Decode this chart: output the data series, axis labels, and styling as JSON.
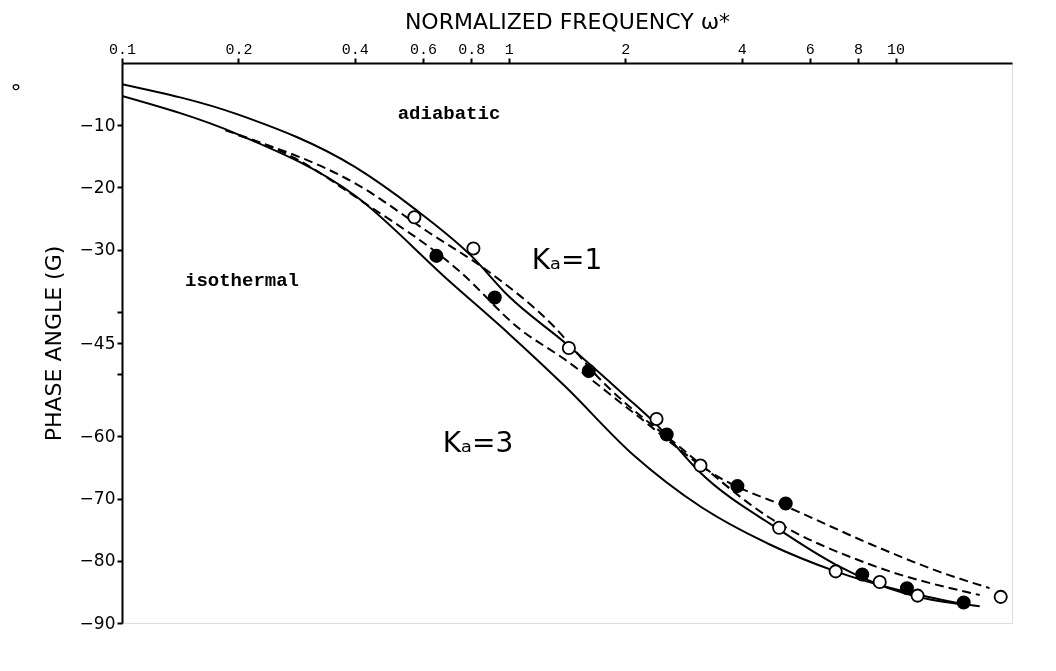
{
  "chart_data": {
    "type": "line",
    "xlabel": "NORMALIZED FREQUENCY ω*",
    "ylabel": "PHASE ANGLE (G)",
    "xlim": [
      0.1,
      20
    ],
    "ylim": [
      -90,
      0
    ],
    "log": "x",
    "grid": false,
    "xticks": [
      0.1,
      0.2,
      0.4,
      0.6,
      0.8,
      1,
      2,
      4,
      6,
      8,
      10
    ],
    "marker": "none",
    "yticks": [
      -10,
      -20,
      -30,
      {
        "value": -40,
        "label": null
      },
      -45,
      {
        "value": -50,
        "label": null
      },
      -60,
      -70,
      -80,
      -90
    ],
    "series": [
      {
        "color": "#000000",
        "line_style": "solid",
        "x": [
          0.1,
          0.2,
          0.4,
          0.57,
          0.8,
          1,
          1.4,
          2,
          2.4,
          3.1,
          5,
          7,
          10.5,
          16.5
        ],
        "values": [
          -3.4,
          -8.3,
          -16.7,
          -23.4,
          -31,
          -37.5,
          -45,
          -53.5,
          -58,
          -65.6,
          -75,
          -80.6,
          -85.2,
          -87.3
        ]
      },
      {
        "color": "#000000",
        "line_style": "solid",
        "x": [
          0.1,
          0.2,
          0.4,
          0.7,
          1,
          1.4,
          2.1,
          3.15,
          4.7,
          7,
          15
        ],
        "values": [
          -5.3,
          -11.5,
          -21.3,
          -35,
          -43.5,
          -52,
          -63,
          -71.4,
          -77.3,
          -81.7,
          -87
        ]
      },
      {
        "color": "#000000",
        "line_style": "dashed",
        "x": [
          0.2,
          0.41,
          0.62,
          0.89,
          1.32,
          1.69,
          2.83,
          4.7,
          8.6,
          16.5
        ],
        "values": [
          -11.6,
          -19.7,
          -27.2,
          -33.6,
          -42.6,
          -50.3,
          -62.2,
          -73,
          -80.6,
          -85.5
        ]
      },
      {
        "color": "#000000",
        "line_style": "dashed",
        "x": [
          0.185,
          0.28,
          0.41,
          0.75,
          1.06,
          1.4,
          2.1,
          3.5,
          5.5,
          8.6,
          12.9,
          17.5
        ],
        "values": [
          -10.8,
          -15.3,
          -21.9,
          -33.6,
          -42.6,
          -47.7,
          -56.2,
          -66.6,
          -71.9,
          -77.3,
          -81.7,
          -84.4
        ]
      },
      {
        "type": "scatter",
        "color": "#ffffff",
        "marker": "circle",
        "x": [
          0.57,
          0.81,
          1.43,
          2.41,
          3.13,
          5.0,
          7.0,
          9.1,
          11.4,
          18.7
        ],
        "values": [
          -24.8,
          -29.8,
          -45.8,
          -57.2,
          -64.7,
          -74.7,
          -81.7,
          -83.4,
          -85.6,
          -85.8
        ]
      },
      {
        "type": "scatter",
        "color": "#000000",
        "marker": "circle",
        "x": [
          0.65,
          0.92,
          1.61,
          2.56,
          3.9,
          5.2,
          8.2,
          10.7,
          15.0
        ],
        "values": [
          -31,
          -37.7,
          -49.5,
          -59.7,
          -68,
          -70.8,
          -82.2,
          -84.4,
          -86.7
        ]
      }
    ],
    "annotations": [
      "°",
      "adiabatic",
      "isothermal",
      "Kₐ=1",
      "Kₐ=3"
    ]
  }
}
